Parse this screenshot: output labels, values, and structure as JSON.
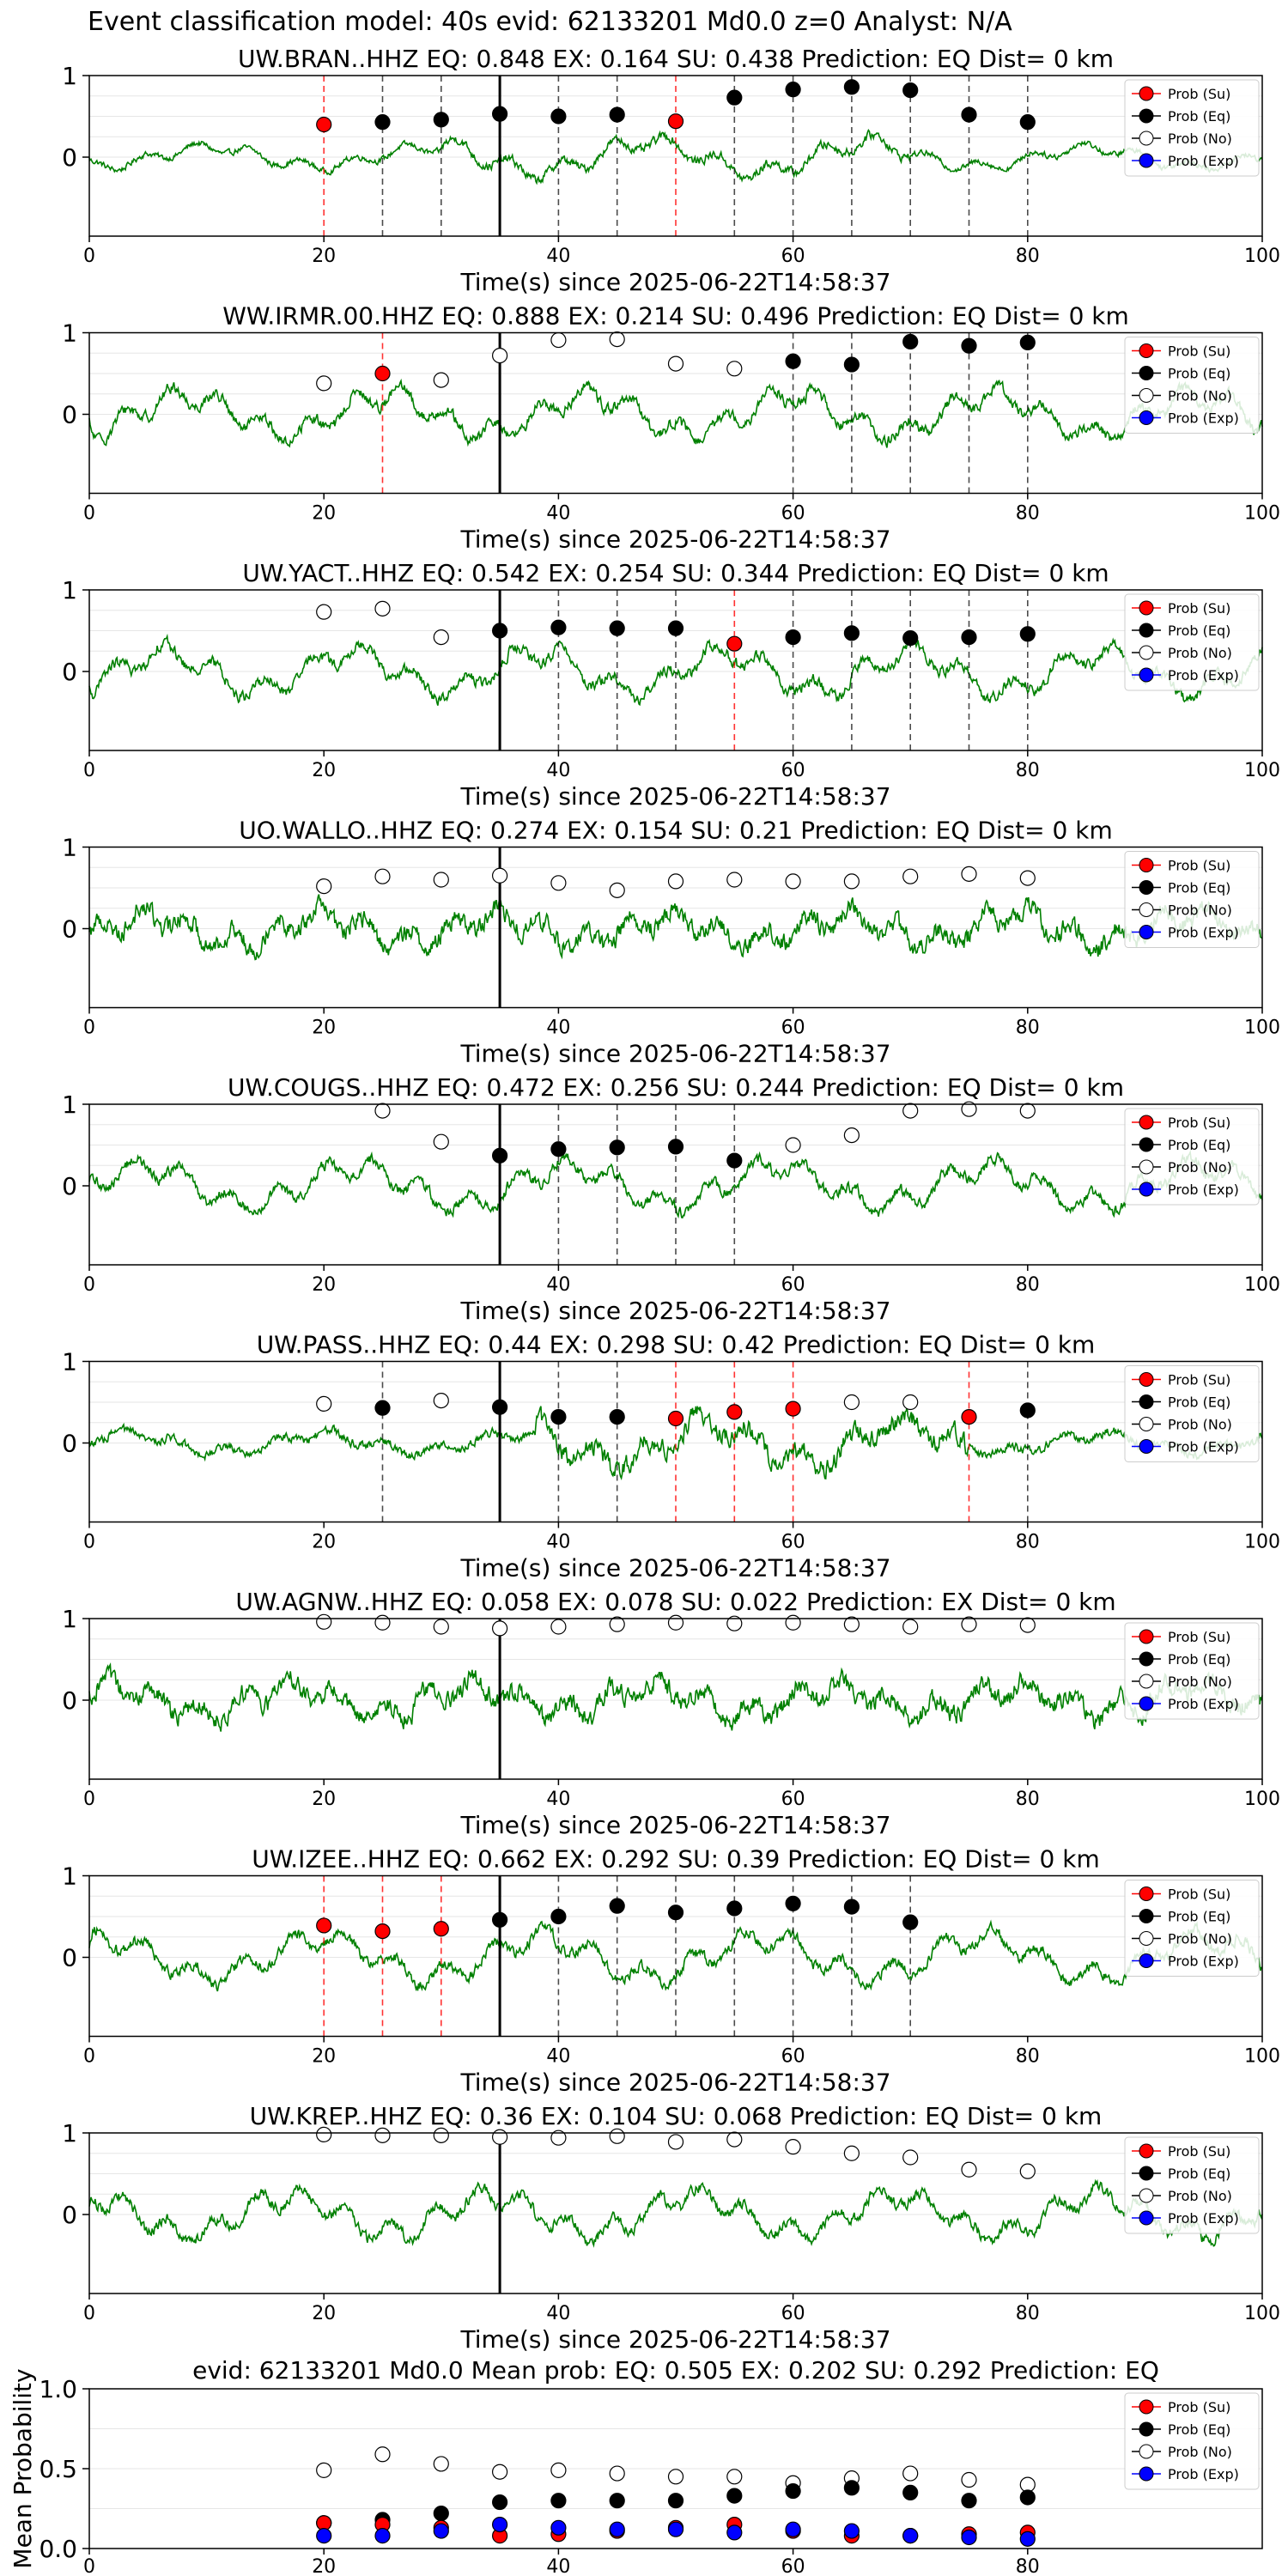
{
  "figure": {
    "title": "Event classification model: 40s evid: 62133201 Md0.0 z=0 Analyst: N/A",
    "colors": {
      "waveform": "#008000",
      "su": "#ff0000",
      "eq": "#000000",
      "no": "#ffffff",
      "exp": "#0000ff",
      "onset_line": "#000000",
      "su_line": "#ff0000",
      "eq_line": "#000000"
    }
  },
  "legend": {
    "entries": [
      "Prob (Su)",
      "Prob (Eq)",
      "Prob (No)",
      "Prob (Exp)"
    ],
    "placement": "top-right"
  },
  "chart_data": [
    {
      "type": "line",
      "title": "UW.BRAN..HHZ   EQ: 0.848  EX: 0.164  SU: 0.438   Prediction: EQ    Dist= 0 km",
      "xlabel": "Time(s) since 2025-06-22T14:58:37",
      "xlim": [
        0,
        100
      ],
      "xticks": [
        "0",
        "20",
        "40",
        "60",
        "80",
        "100"
      ],
      "yticks": [
        "0",
        "1"
      ],
      "onset": 35,
      "windows": [
        {
          "t": 20,
          "p": 0.4,
          "cls": "su"
        },
        {
          "t": 25,
          "p": 0.43,
          "cls": "eq"
        },
        {
          "t": 30,
          "p": 0.46,
          "cls": "eq"
        },
        {
          "t": 35,
          "p": 0.53,
          "cls": "eq"
        },
        {
          "t": 40,
          "p": 0.5,
          "cls": "eq"
        },
        {
          "t": 45,
          "p": 0.52,
          "cls": "eq"
        },
        {
          "t": 50,
          "p": 0.44,
          "cls": "su"
        },
        {
          "t": 55,
          "p": 0.73,
          "cls": "eq"
        },
        {
          "t": 60,
          "p": 0.83,
          "cls": "eq"
        },
        {
          "t": 65,
          "p": 0.86,
          "cls": "eq"
        },
        {
          "t": 70,
          "p": 0.82,
          "cls": "eq"
        },
        {
          "t": 75,
          "p": 0.52,
          "cls": "eq"
        },
        {
          "t": 80,
          "p": 0.43,
          "cls": "eq"
        }
      ]
    },
    {
      "type": "line",
      "title": "WW.IRMR.00.HHZ   EQ: 0.888  EX: 0.214  SU: 0.496   Prediction: EQ    Dist= 0 km",
      "xlabel": "Time(s) since 2025-06-22T14:58:37",
      "xlim": [
        0,
        100
      ],
      "xticks": [
        "0",
        "20",
        "40",
        "60",
        "80",
        "100"
      ],
      "yticks": [
        "0",
        "1"
      ],
      "onset": 35,
      "windows": [
        {
          "t": 20,
          "p": 0.38,
          "cls": "no"
        },
        {
          "t": 25,
          "p": 0.5,
          "cls": "su"
        },
        {
          "t": 30,
          "p": 0.42,
          "cls": "no"
        },
        {
          "t": 35,
          "p": 0.72,
          "cls": "no"
        },
        {
          "t": 40,
          "p": 0.91,
          "cls": "no"
        },
        {
          "t": 45,
          "p": 0.92,
          "cls": "no"
        },
        {
          "t": 50,
          "p": 0.62,
          "cls": "no"
        },
        {
          "t": 55,
          "p": 0.56,
          "cls": "no"
        },
        {
          "t": 60,
          "p": 0.65,
          "cls": "eq"
        },
        {
          "t": 65,
          "p": 0.61,
          "cls": "eq"
        },
        {
          "t": 70,
          "p": 0.89,
          "cls": "eq"
        },
        {
          "t": 75,
          "p": 0.84,
          "cls": "eq"
        },
        {
          "t": 80,
          "p": 0.88,
          "cls": "eq"
        }
      ]
    },
    {
      "type": "line",
      "title": "UW.YACT..HHZ   EQ: 0.542  EX: 0.254  SU: 0.344   Prediction: EQ    Dist= 0 km",
      "xlabel": "Time(s) since 2025-06-22T14:58:37",
      "xlim": [
        0,
        100
      ],
      "xticks": [
        "0",
        "20",
        "40",
        "60",
        "80",
        "100"
      ],
      "yticks": [
        "0",
        "1"
      ],
      "onset": 35,
      "windows": [
        {
          "t": 20,
          "p": 0.73,
          "cls": "no"
        },
        {
          "t": 25,
          "p": 0.77,
          "cls": "no"
        },
        {
          "t": 30,
          "p": 0.42,
          "cls": "no"
        },
        {
          "t": 35,
          "p": 0.5,
          "cls": "eq"
        },
        {
          "t": 40,
          "p": 0.54,
          "cls": "eq"
        },
        {
          "t": 45,
          "p": 0.53,
          "cls": "eq"
        },
        {
          "t": 50,
          "p": 0.53,
          "cls": "eq"
        },
        {
          "t": 55,
          "p": 0.34,
          "cls": "su"
        },
        {
          "t": 60,
          "p": 0.42,
          "cls": "eq"
        },
        {
          "t": 65,
          "p": 0.47,
          "cls": "eq"
        },
        {
          "t": 70,
          "p": 0.41,
          "cls": "eq"
        },
        {
          "t": 75,
          "p": 0.42,
          "cls": "eq"
        },
        {
          "t": 80,
          "p": 0.46,
          "cls": "eq"
        }
      ]
    },
    {
      "type": "line",
      "title": "UO.WALLO..HHZ   EQ: 0.274  EX: 0.154  SU: 0.21   Prediction: EQ    Dist= 0 km",
      "xlabel": "Time(s) since 2025-06-22T14:58:37",
      "xlim": [
        0,
        100
      ],
      "xticks": [
        "0",
        "20",
        "40",
        "60",
        "80",
        "100"
      ],
      "yticks": [
        "0",
        "1"
      ],
      "onset": 35,
      "windows": [
        {
          "t": 20,
          "p": 0.52,
          "cls": "no"
        },
        {
          "t": 25,
          "p": 0.64,
          "cls": "no"
        },
        {
          "t": 30,
          "p": 0.6,
          "cls": "no"
        },
        {
          "t": 35,
          "p": 0.65,
          "cls": "no"
        },
        {
          "t": 40,
          "p": 0.56,
          "cls": "no"
        },
        {
          "t": 45,
          "p": 0.47,
          "cls": "no"
        },
        {
          "t": 50,
          "p": 0.58,
          "cls": "no"
        },
        {
          "t": 55,
          "p": 0.6,
          "cls": "no"
        },
        {
          "t": 60,
          "p": 0.58,
          "cls": "no"
        },
        {
          "t": 65,
          "p": 0.58,
          "cls": "no"
        },
        {
          "t": 70,
          "p": 0.64,
          "cls": "no"
        },
        {
          "t": 75,
          "p": 0.67,
          "cls": "no"
        },
        {
          "t": 80,
          "p": 0.62,
          "cls": "no"
        }
      ]
    },
    {
      "type": "line",
      "title": "UW.COUGS..HHZ   EQ: 0.472  EX: 0.256  SU: 0.244   Prediction: EQ    Dist= 0 km",
      "xlabel": "Time(s) since 2025-06-22T14:58:37",
      "xlim": [
        0,
        100
      ],
      "xticks": [
        "0",
        "20",
        "40",
        "60",
        "80",
        "100"
      ],
      "yticks": [
        "0",
        "1"
      ],
      "onset": 35,
      "windows": [
        {
          "t": 25,
          "p": 0.92,
          "cls": "no"
        },
        {
          "t": 30,
          "p": 0.54,
          "cls": "no"
        },
        {
          "t": 35,
          "p": 0.37,
          "cls": "eq"
        },
        {
          "t": 40,
          "p": 0.45,
          "cls": "eq"
        },
        {
          "t": 45,
          "p": 0.47,
          "cls": "eq"
        },
        {
          "t": 50,
          "p": 0.48,
          "cls": "eq"
        },
        {
          "t": 55,
          "p": 0.31,
          "cls": "eq"
        },
        {
          "t": 60,
          "p": 0.5,
          "cls": "no"
        },
        {
          "t": 65,
          "p": 0.62,
          "cls": "no"
        },
        {
          "t": 70,
          "p": 0.92,
          "cls": "no"
        },
        {
          "t": 75,
          "p": 0.94,
          "cls": "no"
        },
        {
          "t": 80,
          "p": 0.92,
          "cls": "no"
        }
      ]
    },
    {
      "type": "line",
      "title": "UW.PASS..HHZ   EQ: 0.44  EX: 0.298  SU: 0.42   Prediction: EQ    Dist= 0 km",
      "xlabel": "Time(s) since 2025-06-22T14:58:37",
      "xlim": [
        0,
        100
      ],
      "xticks": [
        "0",
        "20",
        "40",
        "60",
        "80",
        "100"
      ],
      "yticks": [
        "0",
        "1"
      ],
      "onset": 35,
      "windows": [
        {
          "t": 20,
          "p": 0.48,
          "cls": "no"
        },
        {
          "t": 25,
          "p": 0.43,
          "cls": "eq"
        },
        {
          "t": 30,
          "p": 0.52,
          "cls": "no"
        },
        {
          "t": 35,
          "p": 0.44,
          "cls": "eq"
        },
        {
          "t": 40,
          "p": 0.32,
          "cls": "eq"
        },
        {
          "t": 45,
          "p": 0.32,
          "cls": "eq"
        },
        {
          "t": 50,
          "p": 0.3,
          "cls": "su"
        },
        {
          "t": 55,
          "p": 0.38,
          "cls": "su"
        },
        {
          "t": 60,
          "p": 0.42,
          "cls": "su"
        },
        {
          "t": 65,
          "p": 0.5,
          "cls": "no"
        },
        {
          "t": 70,
          "p": 0.5,
          "cls": "no"
        },
        {
          "t": 75,
          "p": 0.32,
          "cls": "su"
        },
        {
          "t": 80,
          "p": 0.4,
          "cls": "eq"
        }
      ]
    },
    {
      "type": "line",
      "title": "UW.AGNW..HHZ   EQ: 0.058  EX: 0.078  SU: 0.022   Prediction: EX    Dist= 0 km",
      "xlabel": "Time(s) since 2025-06-22T14:58:37",
      "xlim": [
        0,
        100
      ],
      "xticks": [
        "0",
        "20",
        "40",
        "60",
        "80",
        "100"
      ],
      "yticks": [
        "0",
        "1"
      ],
      "onset": 35,
      "windows": [
        {
          "t": 20,
          "p": 0.96,
          "cls": "no"
        },
        {
          "t": 25,
          "p": 0.95,
          "cls": "no"
        },
        {
          "t": 30,
          "p": 0.9,
          "cls": "no"
        },
        {
          "t": 35,
          "p": 0.88,
          "cls": "no"
        },
        {
          "t": 40,
          "p": 0.9,
          "cls": "no"
        },
        {
          "t": 45,
          "p": 0.93,
          "cls": "no"
        },
        {
          "t": 50,
          "p": 0.95,
          "cls": "no"
        },
        {
          "t": 55,
          "p": 0.94,
          "cls": "no"
        },
        {
          "t": 60,
          "p": 0.95,
          "cls": "no"
        },
        {
          "t": 65,
          "p": 0.93,
          "cls": "no"
        },
        {
          "t": 70,
          "p": 0.9,
          "cls": "no"
        },
        {
          "t": 75,
          "p": 0.93,
          "cls": "no"
        },
        {
          "t": 80,
          "p": 0.92,
          "cls": "no"
        }
      ]
    },
    {
      "type": "line",
      "title": "UW.IZEE..HHZ   EQ: 0.662  EX: 0.292  SU: 0.39   Prediction: EQ    Dist= 0 km",
      "xlabel": "Time(s) since 2025-06-22T14:58:37",
      "xlim": [
        0,
        100
      ],
      "xticks": [
        "0",
        "20",
        "40",
        "60",
        "80",
        "100"
      ],
      "yticks": [
        "0",
        "1"
      ],
      "onset": 35,
      "windows": [
        {
          "t": 20,
          "p": 0.39,
          "cls": "su"
        },
        {
          "t": 25,
          "p": 0.32,
          "cls": "su"
        },
        {
          "t": 30,
          "p": 0.35,
          "cls": "su"
        },
        {
          "t": 35,
          "p": 0.46,
          "cls": "eq"
        },
        {
          "t": 40,
          "p": 0.5,
          "cls": "eq"
        },
        {
          "t": 45,
          "p": 0.63,
          "cls": "eq"
        },
        {
          "t": 50,
          "p": 0.55,
          "cls": "eq"
        },
        {
          "t": 55,
          "p": 0.6,
          "cls": "eq"
        },
        {
          "t": 60,
          "p": 0.66,
          "cls": "eq"
        },
        {
          "t": 65,
          "p": 0.62,
          "cls": "eq"
        },
        {
          "t": 70,
          "p": 0.43,
          "cls": "eq"
        }
      ]
    },
    {
      "type": "line",
      "title": "UW.KREP..HHZ   EQ: 0.36  EX: 0.104  SU: 0.068   Prediction: EQ    Dist= 0 km",
      "xlabel": "Time(s) since 2025-06-22T14:58:37",
      "xlim": [
        0,
        100
      ],
      "xticks": [
        "0",
        "20",
        "40",
        "60",
        "80",
        "100"
      ],
      "yticks": [
        "0",
        "1"
      ],
      "onset": 35,
      "windows": [
        {
          "t": 20,
          "p": 0.98,
          "cls": "no"
        },
        {
          "t": 25,
          "p": 0.97,
          "cls": "no"
        },
        {
          "t": 30,
          "p": 0.97,
          "cls": "no"
        },
        {
          "t": 35,
          "p": 0.95,
          "cls": "no"
        },
        {
          "t": 40,
          "p": 0.94,
          "cls": "no"
        },
        {
          "t": 45,
          "p": 0.96,
          "cls": "no"
        },
        {
          "t": 50,
          "p": 0.89,
          "cls": "no"
        },
        {
          "t": 55,
          "p": 0.92,
          "cls": "no"
        },
        {
          "t": 60,
          "p": 0.83,
          "cls": "no"
        },
        {
          "t": 65,
          "p": 0.75,
          "cls": "no"
        },
        {
          "t": 70,
          "p": 0.7,
          "cls": "no"
        },
        {
          "t": 75,
          "p": 0.55,
          "cls": "no"
        },
        {
          "t": 80,
          "p": 0.53,
          "cls": "no"
        }
      ]
    },
    {
      "type": "scatter",
      "title": "evid: 62133201  Md0.0    Mean prob:    EQ: 0.505  EX: 0.202  SU: 0.292   Prediction: EQ",
      "ylabel": "Mean Probability",
      "xlim": [
        0,
        100
      ],
      "ylim": [
        0,
        1
      ],
      "xticks": [
        "0",
        "20",
        "40",
        "60",
        "80"
      ],
      "yticks": [
        "0.0",
        "0.5",
        "1.0"
      ],
      "x": [
        20,
        25,
        30,
        35,
        40,
        45,
        50,
        55,
        60,
        65,
        70,
        75,
        80
      ],
      "series": [
        {
          "name": "Prob (No)",
          "cls": "no",
          "values": [
            0.49,
            0.59,
            0.53,
            0.48,
            0.49,
            0.47,
            0.45,
            0.45,
            0.41,
            0.44,
            0.47,
            0.43,
            0.4
          ]
        },
        {
          "name": "Prob (Eq)",
          "cls": "eq",
          "values": [
            0.16,
            0.18,
            0.22,
            0.29,
            0.3,
            0.3,
            0.3,
            0.33,
            0.36,
            0.38,
            0.35,
            0.3,
            0.32
          ]
        },
        {
          "name": "Prob (Su)",
          "cls": "su",
          "values": [
            0.16,
            0.15,
            0.13,
            0.08,
            0.09,
            0.11,
            0.13,
            0.15,
            0.11,
            0.08,
            0.08,
            0.09,
            0.1
          ]
        },
        {
          "name": "Prob (Exp)",
          "cls": "exp",
          "values": [
            0.08,
            0.08,
            0.11,
            0.15,
            0.13,
            0.12,
            0.12,
            0.1,
            0.12,
            0.11,
            0.08,
            0.07,
            0.06
          ]
        }
      ]
    }
  ]
}
